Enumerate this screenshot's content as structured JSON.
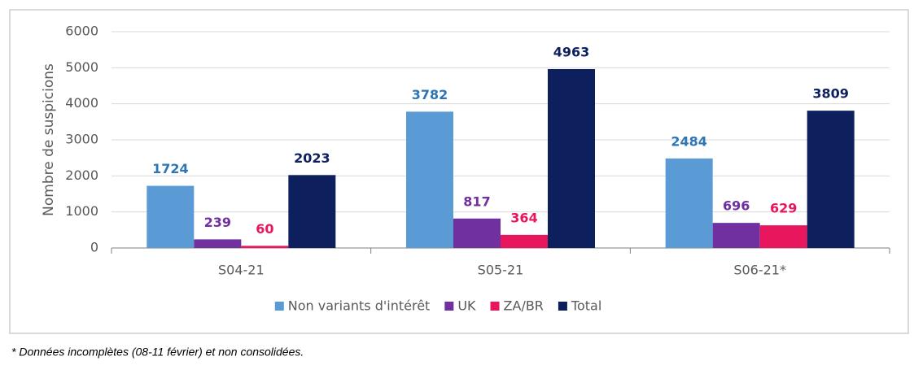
{
  "chart_data": {
    "type": "bar",
    "y_label": "Nombre de suspicions",
    "categories": [
      "S04-21",
      "S05-21",
      "S06-21*"
    ],
    "series": [
      {
        "name": "Non variants d'intérêt",
        "color": "#5b9bd5",
        "values": [
          1724,
          3782,
          2484
        ]
      },
      {
        "name": "UK",
        "color": "#7030a0",
        "values": [
          239,
          817,
          696
        ]
      },
      {
        "name": "ZA/BR",
        "color": "#e8175d",
        "values": [
          60,
          364,
          629
        ]
      },
      {
        "name": "Total",
        "color": "#0d1f5c",
        "values": [
          2023,
          4963,
          3809
        ]
      }
    ],
    "ylim": [
      0,
      6000
    ],
    "yticks": [
      0,
      1000,
      2000,
      3000,
      4000,
      5000,
      6000
    ],
    "grid": true,
    "legend": "bottom"
  },
  "footnote": "* Données incomplètes (08-11 février) et non consolidées."
}
